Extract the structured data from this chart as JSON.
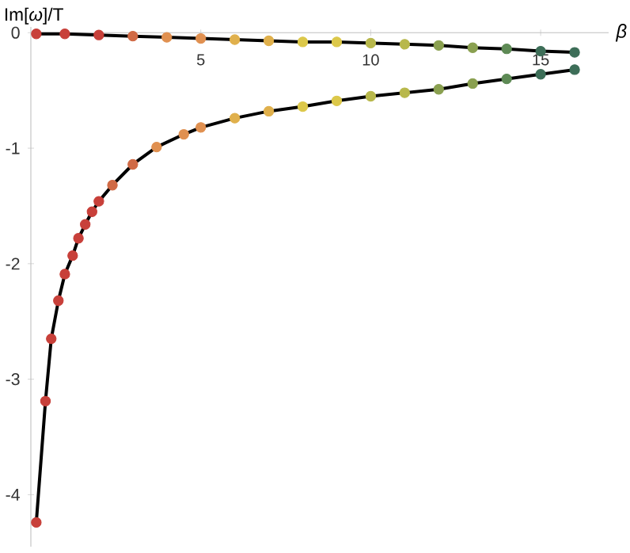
{
  "chart_data": {
    "type": "scatter",
    "xlabel": "β",
    "ylabel": "Im[*ω*]/T",
    "xlim": [
      0,
      17
    ],
    "ylim": [
      -4.45,
      0.05
    ],
    "xticks": [
      5,
      10,
      15
    ],
    "yticks": [
      0,
      -1,
      -2,
      -3,
      -4
    ],
    "grid": false,
    "series": [
      {
        "marker": "circle",
        "x": [
          0.16,
          0.43,
          0.6,
          0.81,
          1.0,
          1.23,
          1.4,
          1.6,
          1.8,
          2.0,
          2.4,
          3.0,
          3.7,
          4.5,
          5.0,
          6.0,
          7.0,
          8.0,
          9.0,
          10.0,
          11.0,
          12.0,
          13.0,
          14.0,
          15.0,
          16.0
        ],
        "values": [
          -4.24,
          -3.19,
          -2.65,
          -2.32,
          -2.09,
          -1.93,
          -1.78,
          -1.66,
          -1.55,
          -1.46,
          -1.32,
          -1.14,
          -0.99,
          -0.88,
          -0.82,
          -0.74,
          -0.68,
          -0.64,
          -0.59,
          -0.55,
          -0.52,
          -0.49,
          -0.44,
          -0.4,
          -0.36,
          -0.32
        ],
        "colors": [
          "#c8403a",
          "#c8403a",
          "#c8403a",
          "#c8403a",
          "#c8403a",
          "#c8403a",
          "#c8403a",
          "#c8403a",
          "#c8403a",
          "#c8403a",
          "#d06a45",
          "#d06a45",
          "#e09050",
          "#e09050",
          "#e09050",
          "#e0b04c",
          "#e0b04c",
          "#dcc84a",
          "#dcc84a",
          "#b8b84c",
          "#b8b84c",
          "#8aa050",
          "#8aa050",
          "#5e8a55",
          "#3d6e58",
          "#3d6e58"
        ]
      },
      {
        "marker": "circle",
        "x": [
          0.16,
          1.0,
          2.0,
          3.0,
          4.0,
          5.0,
          6.0,
          7.0,
          8.0,
          9.0,
          10.0,
          11.0,
          12.0,
          13.0,
          14.0,
          15.0,
          16.0
        ],
        "values": [
          -0.01,
          -0.01,
          -0.02,
          -0.03,
          -0.04,
          -0.05,
          -0.06,
          -0.07,
          -0.08,
          -0.08,
          -0.09,
          -0.1,
          -0.11,
          -0.13,
          -0.14,
          -0.16,
          -0.17
        ],
        "colors": [
          "#c8403a",
          "#c8403a",
          "#c8403a",
          "#d06a45",
          "#e09050",
          "#e09050",
          "#e0b04c",
          "#e0b04c",
          "#dcc84a",
          "#dcc84a",
          "#b8b84c",
          "#b8b84c",
          "#8aa050",
          "#8aa050",
          "#5e8a55",
          "#3d6e58",
          "#3d6e58"
        ]
      },
      {
        "type": "line",
        "marker": "none",
        "color": "#000000",
        "line_style": "solid",
        "x": [
          0.16,
          0.43,
          0.6,
          0.81,
          1.0,
          1.23,
          1.4,
          1.6,
          1.8,
          2.0,
          2.4,
          3.0,
          3.7,
          4.5,
          5.0,
          6.0,
          7.0,
          8.0,
          9.0,
          10.0,
          11.0,
          12.0,
          13.0,
          14.0,
          15.0,
          16.0
        ],
        "values": [
          -4.24,
          -3.19,
          -2.65,
          -2.32,
          -2.09,
          -1.93,
          -1.78,
          -1.66,
          -1.55,
          -1.46,
          -1.32,
          -1.14,
          -0.99,
          -0.88,
          -0.82,
          -0.74,
          -0.68,
          -0.64,
          -0.59,
          -0.55,
          -0.52,
          -0.49,
          -0.44,
          -0.4,
          -0.36,
          -0.32
        ]
      },
      {
        "type": "line",
        "marker": "none",
        "color": "#000000",
        "line_style": "solid",
        "x": [
          0.16,
          1.0,
          2.0,
          3.0,
          4.0,
          5.0,
          6.0,
          7.0,
          8.0,
          9.0,
          10.0,
          11.0,
          12.0,
          13.0,
          14.0,
          15.0,
          16.0
        ],
        "values": [
          -0.01,
          -0.01,
          -0.02,
          -0.03,
          -0.04,
          -0.05,
          -0.06,
          -0.07,
          -0.08,
          -0.08,
          -0.09,
          -0.1,
          -0.11,
          -0.13,
          -0.14,
          -0.16,
          -0.17
        ]
      }
    ]
  }
}
